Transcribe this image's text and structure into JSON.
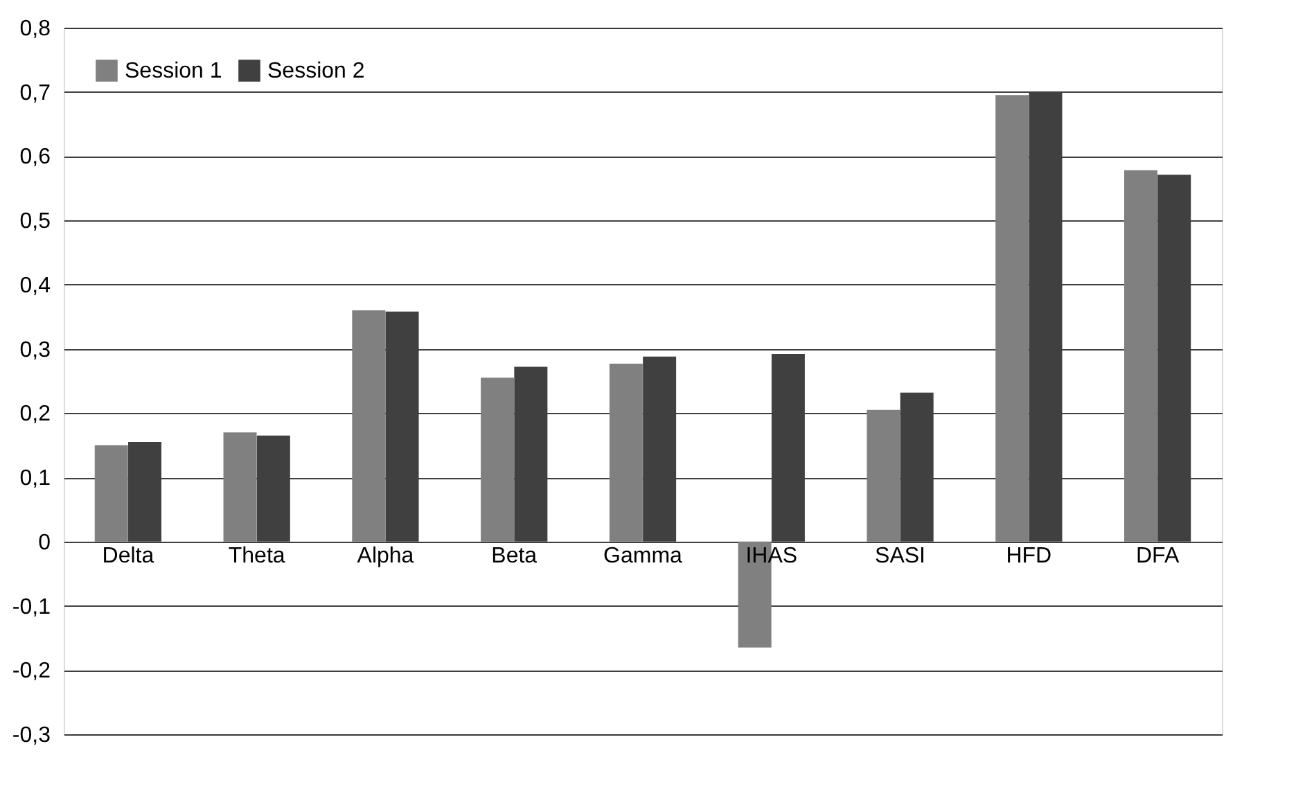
{
  "chart_data": {
    "type": "bar",
    "categories": [
      "Delta",
      "Theta",
      "Alpha",
      "Beta",
      "Gamma",
      "IHAS",
      "SASI",
      "HFD",
      "DFA"
    ],
    "series": [
      {
        "name": "Session 1",
        "color": "#808080",
        "values": [
          0.15,
          0.17,
          0.36,
          0.255,
          0.277,
          -0.165,
          0.205,
          0.695,
          0.578
        ]
      },
      {
        "name": "Session 2",
        "color": "#404040",
        "values": [
          0.155,
          0.165,
          0.358,
          0.272,
          0.288,
          0.292,
          0.232,
          0.7,
          0.571
        ]
      }
    ],
    "ylim": [
      -0.3,
      0.8
    ],
    "yticks": [
      {
        "value": -0.3,
        "label": "-0,3"
      },
      {
        "value": -0.2,
        "label": "-0,2"
      },
      {
        "value": -0.1,
        "label": "-0,1"
      },
      {
        "value": 0,
        "label": "0"
      },
      {
        "value": 0.1,
        "label": "0,1"
      },
      {
        "value": 0.2,
        "label": "0,2"
      },
      {
        "value": 0.3,
        "label": "0,3"
      },
      {
        "value": 0.4,
        "label": "0,4"
      },
      {
        "value": 0.5,
        "label": "0,5"
      },
      {
        "value": 0.6,
        "label": "0,6"
      },
      {
        "value": 0.7,
        "label": "0,7"
      },
      {
        "value": 0.8,
        "label": "0,8"
      }
    ],
    "grid": "y",
    "legend": "top left"
  }
}
